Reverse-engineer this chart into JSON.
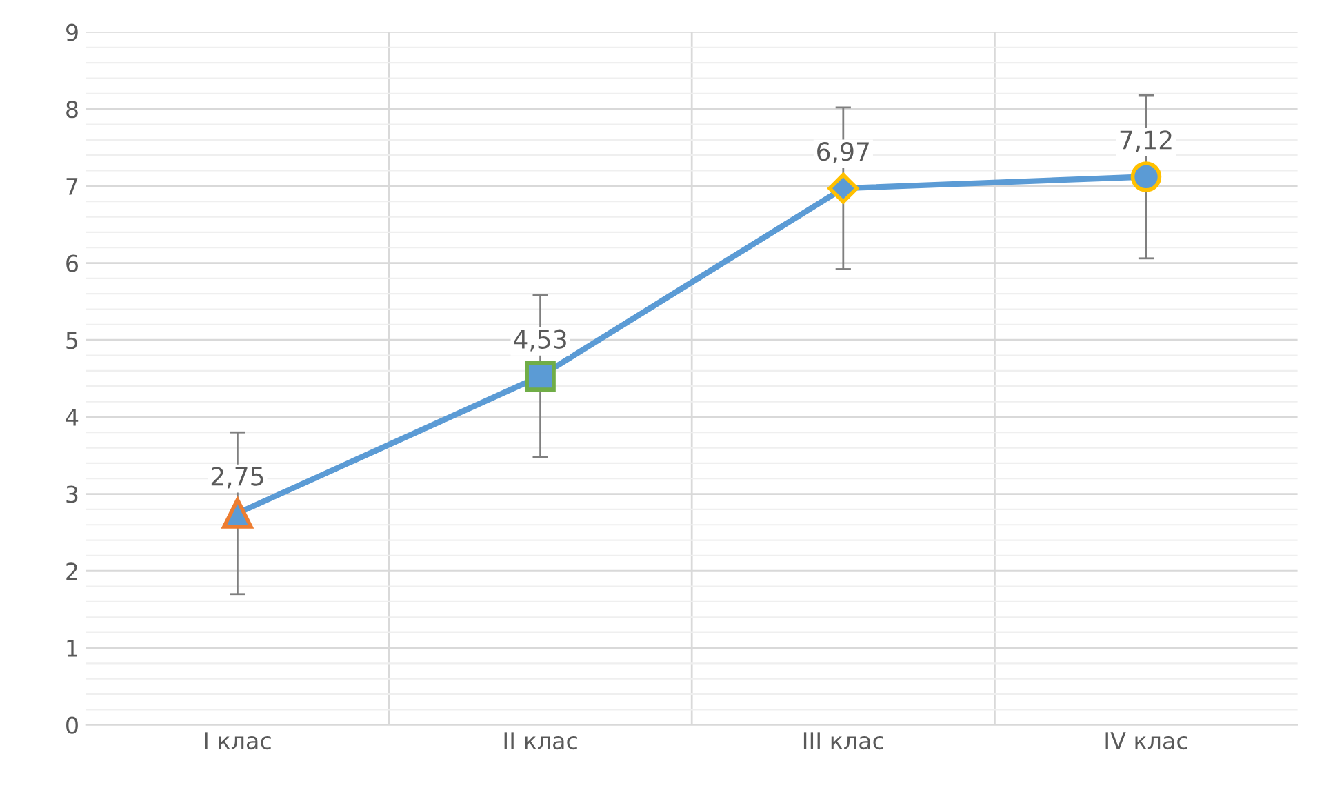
{
  "chart_data": {
    "type": "line",
    "categories": [
      "I клас",
      "II клас",
      "III клас",
      "IV клас"
    ],
    "series": [
      {
        "color": "#5b9bd5",
        "values": [
          2.75,
          4.53,
          6.97,
          7.12
        ],
        "errors": [
          1.05,
          1.05,
          1.05,
          1.06
        ],
        "value_labels": [
          "2,75",
          "4,53",
          "6,97",
          "7,12"
        ],
        "colors": [
          "#ed7d31",
          "#70ad47",
          "#ffc000",
          "#ffc000"
        ]
      }
    ],
    "marker": [
      "triangle",
      "square",
      "diamond",
      "circle"
    ],
    "ylim": [
      0,
      9
    ],
    "yticks": [
      0,
      1,
      2,
      3,
      4,
      5,
      6,
      7,
      8,
      9
    ],
    "grid": true,
    "line_style": "solid"
  }
}
